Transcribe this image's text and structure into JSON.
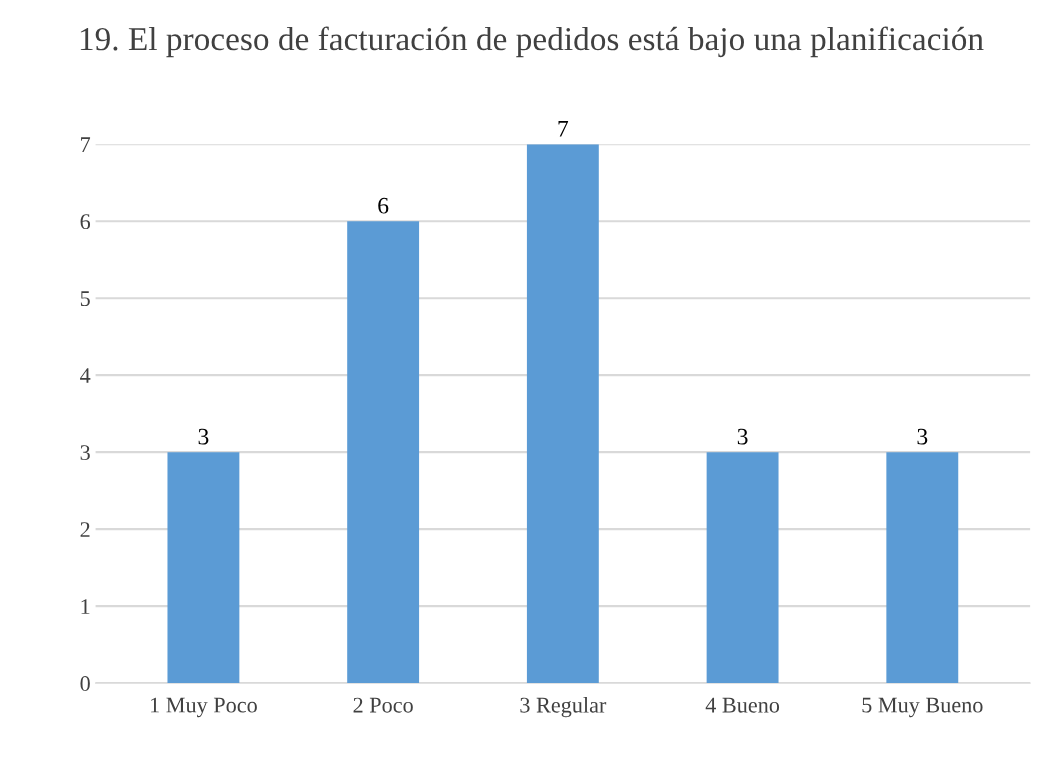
{
  "chart_data": {
    "type": "bar",
    "title": "19. El proceso de facturación de pedidos está bajo una planificación",
    "categories": [
      "1 Muy Poco",
      "2 Poco",
      "3 Regular",
      "4 Bueno",
      "5 Muy Bueno"
    ],
    "values": [
      3,
      6,
      7,
      3,
      3
    ],
    "color": "#5b9bd5",
    "ylim": [
      0,
      7
    ],
    "yticks": [
      0,
      1,
      2,
      3,
      4,
      5,
      6,
      7
    ],
    "grid": "y",
    "data_labels": true
  }
}
